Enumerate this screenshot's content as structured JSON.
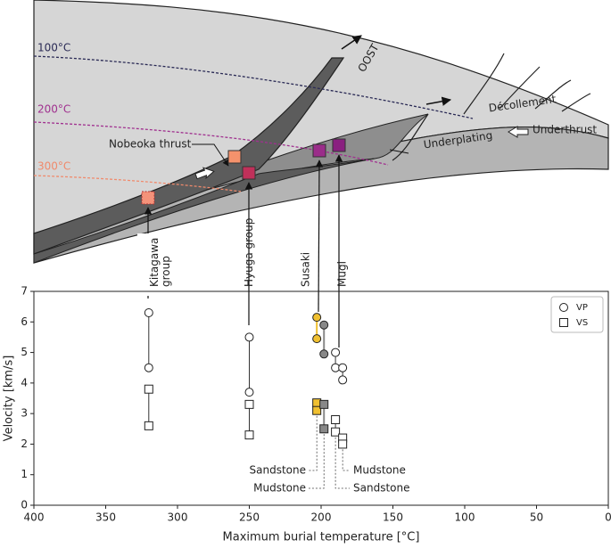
{
  "chart_data": {
    "type": "scatter",
    "xlabel": "Maximum burial temperature [°C]",
    "ylabel": "Velocity [km/s]",
    "xlim": [
      400,
      0
    ],
    "ylim": [
      0,
      7
    ],
    "xticks": [
      400,
      350,
      300,
      250,
      200,
      150,
      100,
      50,
      0
    ],
    "yticks": [
      0,
      1,
      2,
      3,
      4,
      5,
      6,
      7
    ],
    "legend": "upper right",
    "series": [
      {
        "name": "VP",
        "marker": "circle",
        "x": [
          320,
          320,
          250,
          250,
          203,
          203,
          198,
          198,
          190,
          190,
          185,
          185
        ],
        "values": [
          6.3,
          4.5,
          5.5,
          3.7,
          6.15,
          5.45,
          5.9,
          4.95,
          5.0,
          4.5,
          4.5,
          4.1
        ],
        "colors": [
          "#ffffff",
          "#ffffff",
          "#ffffff",
          "#ffffff",
          "#f0c030",
          "#f0c030",
          "#888888",
          "#888888",
          "#ffffff",
          "#ffffff",
          "#ffffff",
          "#ffffff"
        ]
      },
      {
        "name": "VS",
        "marker": "square",
        "x": [
          320,
          320,
          250,
          250,
          203,
          203,
          198,
          198,
          190,
          190,
          185,
          185
        ],
        "values": [
          3.8,
          2.6,
          3.3,
          2.3,
          3.35,
          3.1,
          3.3,
          2.5,
          2.8,
          2.4,
          2.2,
          2.0
        ],
        "colors": [
          "#ffffff",
          "#ffffff",
          "#ffffff",
          "#ffffff",
          "#f0c030",
          "#f0c030",
          "#888888",
          "#888888",
          "#ffffff",
          "#ffffff",
          "#ffffff",
          "#ffffff"
        ]
      }
    ],
    "group_labels": [
      "Kitagawa group",
      "Hyuga group",
      "Susaki",
      "Mugi"
    ],
    "lithology_labels": [
      "Sandstone",
      "Mudstone",
      "Mudstone",
      "Sandstone"
    ]
  },
  "diagram": {
    "isotherms": [
      "100°C",
      "200°C",
      "300°C"
    ],
    "labels": [
      "OOST",
      "Décollement",
      "Underthrust",
      "Underplating",
      "Nobeoka thrust"
    ]
  }
}
